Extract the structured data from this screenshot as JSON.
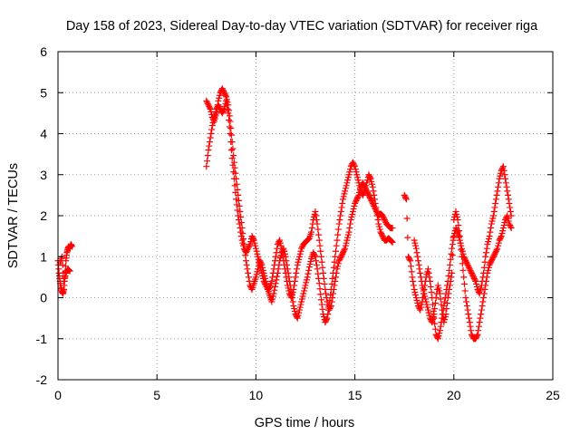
{
  "chart_data": {
    "type": "scatter",
    "title": "Day 158 of 2023, Sidereal Day-to-day VTEC variation (SDTVAR) for receiver riga",
    "xlabel": "GPS time / hours",
    "ylabel": "SDTVAR / TECUs",
    "xlim": [
      0,
      25
    ],
    "ylim": [
      -2,
      6
    ],
    "xticks": [
      0,
      5,
      10,
      15,
      20,
      25
    ],
    "yticks": [
      -2,
      -1,
      0,
      1,
      2,
      3,
      4,
      5,
      6
    ],
    "grid": true,
    "marker": "+",
    "color": "#ff0000",
    "series": [
      {
        "name": "segment-1",
        "x": [
          0.0,
          0.05,
          0.1,
          0.15,
          0.2,
          0.25,
          0.3,
          0.35,
          0.4,
          0.45,
          0.5,
          0.55,
          0.6,
          0.65,
          0.7,
          0.1,
          0.2,
          0.3,
          0.4,
          0.5,
          0.6
        ],
        "y": [
          0.9,
          0.6,
          0.4,
          0.25,
          0.15,
          0.1,
          0.2,
          0.5,
          0.9,
          1.1,
          1.2,
          1.25,
          1.2,
          1.3,
          1.25,
          0.85,
          1.0,
          0.4,
          0.6,
          0.7,
          0.65
        ]
      },
      {
        "name": "segment-2",
        "x": [
          7.5,
          7.6,
          7.7,
          7.8,
          7.9,
          8.0,
          8.1,
          8.2,
          8.3,
          8.4,
          8.5,
          8.6,
          8.7,
          8.8,
          8.9,
          9.0,
          9.1,
          9.2,
          9.3,
          9.4,
          9.5,
          9.6,
          9.7,
          9.8,
          9.9,
          10.0,
          10.1,
          10.2,
          10.3,
          10.4,
          10.5,
          10.6,
          10.7,
          10.8,
          10.9,
          11.0,
          11.1,
          11.2,
          11.3,
          11.4,
          11.5,
          11.6,
          11.7,
          11.8,
          11.9,
          12.0,
          12.1,
          12.2,
          12.3,
          12.4,
          12.5,
          12.6,
          12.7,
          12.8,
          12.9,
          13.0,
          13.1,
          13.2,
          13.3,
          13.4,
          13.5,
          13.6,
          13.7,
          13.8,
          13.9,
          14.0,
          14.1,
          14.2,
          14.3,
          14.4,
          14.5,
          14.6,
          14.7,
          14.8,
          14.9,
          15.0,
          15.1,
          15.2,
          15.3,
          15.4,
          15.5,
          15.6,
          15.7,
          15.8,
          15.9,
          16.0,
          16.1,
          16.2,
          16.3,
          16.4,
          16.5,
          16.6,
          16.7,
          16.8,
          16.9
        ],
        "y": [
          4.8,
          4.7,
          4.6,
          4.4,
          4.3,
          4.5,
          4.8,
          5.0,
          5.1,
          5.0,
          4.9,
          4.7,
          4.3,
          3.8,
          3.3,
          2.9,
          2.5,
          2.1,
          1.7,
          1.3,
          0.9,
          0.6,
          0.3,
          0.2,
          0.35,
          0.5,
          0.7,
          0.9,
          0.8,
          0.6,
          0.4,
          0.2,
          0.05,
          -0.1,
          0.1,
          0.35,
          0.6,
          0.9,
          1.1,
          1.2,
          1.0,
          0.7,
          0.4,
          0.1,
          -0.2,
          -0.4,
          -0.5,
          -0.3,
          -0.1,
          0.1,
          0.3,
          0.5,
          0.75,
          0.95,
          1.1,
          1.0,
          0.7,
          0.35,
          -0.05,
          -0.4,
          -0.6,
          -0.5,
          -0.2,
          0.2,
          0.6,
          1.0,
          1.4,
          1.8,
          2.1,
          2.4,
          2.6,
          2.8,
          3.0,
          3.2,
          3.3,
          3.2,
          3.0,
          2.8,
          2.6,
          2.5,
          2.6,
          2.8,
          3.0,
          2.9,
          2.7,
          2.4,
          2.1,
          1.8,
          1.6,
          1.5,
          1.4,
          1.4,
          1.45,
          1.4,
          1.35
        ]
      },
      {
        "name": "segment-2b",
        "x": [
          7.5,
          7.6,
          7.7,
          7.8,
          7.9,
          8.0,
          8.1,
          8.2,
          8.3,
          8.4,
          8.5,
          8.6,
          8.7,
          8.8,
          8.9,
          9.0,
          9.1,
          9.2,
          9.3,
          9.4,
          9.5,
          9.6,
          9.7,
          9.8,
          9.9,
          10.0,
          10.1,
          10.2,
          10.3,
          10.4,
          10.5,
          10.6,
          10.7,
          10.8,
          10.9,
          11.0,
          11.1,
          11.2,
          11.3,
          11.4,
          11.5,
          11.6,
          11.7,
          11.8,
          11.9,
          12.0,
          12.1,
          12.2,
          12.3,
          12.4,
          12.5,
          12.6,
          12.7,
          12.8,
          12.9,
          13.0,
          13.1,
          13.2,
          13.3,
          13.4,
          13.5,
          13.6,
          13.7,
          13.8,
          13.9,
          14.0,
          14.1,
          14.2,
          14.3,
          14.4,
          14.5,
          14.6,
          14.7,
          14.8,
          14.9,
          15.0,
          15.1,
          15.2,
          15.3,
          15.4,
          15.5,
          15.6,
          15.7,
          15.8,
          15.9,
          16.0,
          16.1,
          16.2,
          16.3,
          16.4,
          16.5,
          16.6,
          16.7,
          16.8,
          16.9
        ],
        "y": [
          3.2,
          3.6,
          3.9,
          4.2,
          4.4,
          4.6,
          4.7,
          4.6,
          4.5,
          4.6,
          4.8,
          4.5,
          4.0,
          3.4,
          2.9,
          2.4,
          2.0,
          1.7,
          1.4,
          1.2,
          1.1,
          1.2,
          1.3,
          1.5,
          1.4,
          1.2,
          1.0,
          0.8,
          0.6,
          0.4,
          0.3,
          0.2,
          0.25,
          0.4,
          0.7,
          1.0,
          1.3,
          1.4,
          1.2,
          0.9,
          0.6,
          0.3,
          0.1,
          0.0,
          0.2,
          0.5,
          0.8,
          1.0,
          1.2,
          1.3,
          1.35,
          1.4,
          1.45,
          1.6,
          1.9,
          2.1,
          1.8,
          1.4,
          1.0,
          0.6,
          0.2,
          -0.1,
          -0.3,
          -0.2,
          0.1,
          0.4,
          0.7,
          0.9,
          1.0,
          1.1,
          1.2,
          1.4,
          1.6,
          1.9,
          2.1,
          2.3,
          2.4,
          2.5,
          2.7,
          2.8,
          2.7,
          2.6,
          2.5,
          2.4,
          2.3,
          2.2,
          2.1,
          2.0,
          2.05,
          2.0,
          1.9,
          1.8,
          1.75,
          1.7,
          1.7
        ]
      },
      {
        "name": "segment-3",
        "x": [
          17.5,
          17.6,
          17.7,
          17.8,
          17.9,
          18.0,
          18.1,
          18.2,
          18.3,
          18.4,
          18.5,
          18.6,
          18.7,
          18.8,
          18.9,
          19.0,
          19.1,
          19.2,
          19.3,
          19.4,
          19.5,
          19.6,
          19.7,
          19.8,
          19.9,
          20.0,
          20.1,
          20.2,
          20.3,
          20.4,
          20.5,
          20.6,
          20.7,
          20.8,
          20.9,
          21.0,
          21.1,
          21.2,
          21.3,
          21.4,
          21.5,
          21.6,
          21.7,
          21.8,
          21.9,
          22.0,
          22.1,
          22.2,
          22.3,
          22.4,
          22.5,
          22.6,
          22.7,
          22.8,
          22.9
        ],
        "y": [
          2.5,
          2.4,
          1.0,
          0.9,
          0.5,
          0.2,
          0.0,
          -0.2,
          -0.3,
          -0.1,
          0.2,
          0.5,
          0.7,
          0.4,
          0.0,
          -0.5,
          -0.9,
          -1.0,
          -0.8,
          -0.5,
          -0.2,
          0.1,
          0.4,
          0.8,
          1.2,
          1.5,
          1.7,
          1.6,
          1.4,
          1.2,
          1.0,
          0.9,
          0.8,
          0.7,
          0.6,
          0.5,
          0.4,
          0.2,
          0.1,
          0.3,
          0.6,
          1.0,
          1.3,
          1.5,
          1.8,
          2.0,
          2.3,
          2.6,
          2.9,
          3.1,
          3.2,
          2.9,
          2.6,
          2.3,
          2.0
        ]
      },
      {
        "name": "segment-3b",
        "x": [
          18.0,
          18.1,
          18.2,
          18.3,
          18.4,
          18.5,
          18.6,
          18.7,
          18.8,
          18.9,
          19.0,
          19.1,
          19.2,
          19.3,
          19.4,
          19.5,
          19.6,
          19.7,
          19.8,
          19.9,
          20.0,
          20.1,
          20.2,
          20.3,
          20.4,
          20.5,
          20.6,
          20.7,
          20.8,
          20.9,
          21.0,
          21.1,
          21.2,
          21.3,
          21.4,
          21.5,
          21.6,
          21.7,
          21.8,
          21.9,
          22.0,
          22.1,
          22.2,
          22.3,
          22.4,
          22.5,
          22.6,
          22.7,
          22.8,
          22.9
        ],
        "y": [
          1.4,
          1.2,
          0.9,
          0.6,
          0.3,
          0.1,
          -0.1,
          -0.3,
          -0.5,
          -0.6,
          -0.4,
          0.0,
          0.3,
          0.1,
          -0.3,
          -0.6,
          -0.4,
          0.0,
          0.3,
          0.6,
          1.9,
          2.1,
          1.9,
          1.5,
          1.0,
          0.5,
          0.0,
          -0.3,
          -0.6,
          -0.9,
          -1.0,
          -1.0,
          -0.9,
          -0.6,
          -0.3,
          0.0,
          0.3,
          0.6,
          0.8,
          0.9,
          1.0,
          1.1,
          1.2,
          1.4,
          1.5,
          1.7,
          1.9,
          2.0,
          1.8,
          1.7
        ]
      }
    ]
  }
}
